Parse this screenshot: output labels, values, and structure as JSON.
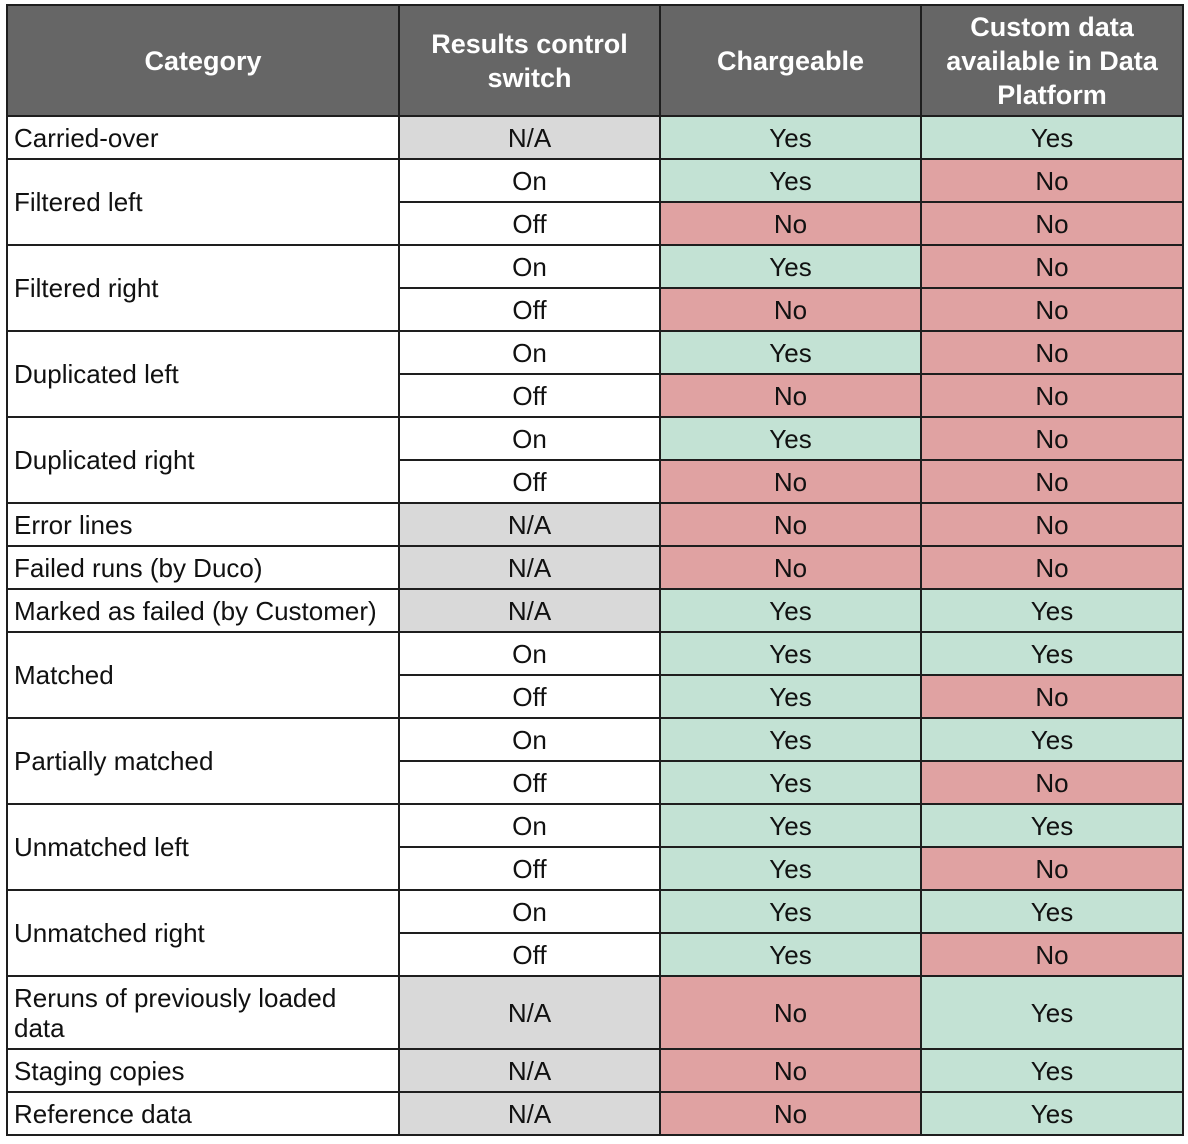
{
  "colors": {
    "header_bg": "#666666",
    "header_text": "#ffffff",
    "na_bg": "#d9d9d9",
    "yes_bg": "#c3e2d4",
    "no_bg": "#e0a2a2",
    "border": "#1e1e1e"
  },
  "headers": [
    "Category",
    "Results control switch",
    "Chargeable",
    "Custom data available in Data Platform"
  ],
  "categories": [
    {
      "name": "Carried-over",
      "rows": [
        {
          "switch": "N/A",
          "chargeable": "Yes",
          "custom": "Yes"
        }
      ]
    },
    {
      "name": "Filtered left",
      "rows": [
        {
          "switch": "On",
          "chargeable": "Yes",
          "custom": "No"
        },
        {
          "switch": "Off",
          "chargeable": "No",
          "custom": "No"
        }
      ]
    },
    {
      "name": "Filtered right",
      "rows": [
        {
          "switch": "On",
          "chargeable": "Yes",
          "custom": "No"
        },
        {
          "switch": "Off",
          "chargeable": "No",
          "custom": "No"
        }
      ]
    },
    {
      "name": "Duplicated left",
      "rows": [
        {
          "switch": "On",
          "chargeable": "Yes",
          "custom": "No"
        },
        {
          "switch": "Off",
          "chargeable": "No",
          "custom": "No"
        }
      ]
    },
    {
      "name": "Duplicated right",
      "rows": [
        {
          "switch": "On",
          "chargeable": "Yes",
          "custom": "No"
        },
        {
          "switch": "Off",
          "chargeable": "No",
          "custom": "No"
        }
      ]
    },
    {
      "name": "Error lines",
      "rows": [
        {
          "switch": "N/A",
          "chargeable": "No",
          "custom": "No"
        }
      ]
    },
    {
      "name": "Failed runs (by Duco)",
      "rows": [
        {
          "switch": "N/A",
          "chargeable": "No",
          "custom": "No"
        }
      ]
    },
    {
      "name": "Marked as failed (by Customer)",
      "rows": [
        {
          "switch": "N/A",
          "chargeable": "Yes",
          "custom": "Yes"
        }
      ]
    },
    {
      "name": "Matched",
      "rows": [
        {
          "switch": "On",
          "chargeable": "Yes",
          "custom": "Yes"
        },
        {
          "switch": "Off",
          "chargeable": "Yes",
          "custom": "No"
        }
      ]
    },
    {
      "name": "Partially matched",
      "rows": [
        {
          "switch": "On",
          "chargeable": "Yes",
          "custom": "Yes"
        },
        {
          "switch": "Off",
          "chargeable": "Yes",
          "custom": "No"
        }
      ]
    },
    {
      "name": "Unmatched left",
      "rows": [
        {
          "switch": "On",
          "chargeable": "Yes",
          "custom": "Yes"
        },
        {
          "switch": "Off",
          "chargeable": "Yes",
          "custom": "No"
        }
      ]
    },
    {
      "name": "Unmatched right",
      "rows": [
        {
          "switch": "On",
          "chargeable": "Yes",
          "custom": "Yes"
        },
        {
          "switch": "Off",
          "chargeable": "Yes",
          "custom": "No"
        }
      ]
    },
    {
      "name": "Reruns of previously loaded data",
      "rows": [
        {
          "switch": "N/A",
          "chargeable": "No",
          "custom": "Yes"
        }
      ]
    },
    {
      "name": "Staging copies",
      "rows": [
        {
          "switch": "N/A",
          "chargeable": "No",
          "custom": "Yes"
        }
      ]
    },
    {
      "name": "Reference data",
      "rows": [
        {
          "switch": "N/A",
          "chargeable": "No",
          "custom": "Yes"
        }
      ]
    }
  ]
}
